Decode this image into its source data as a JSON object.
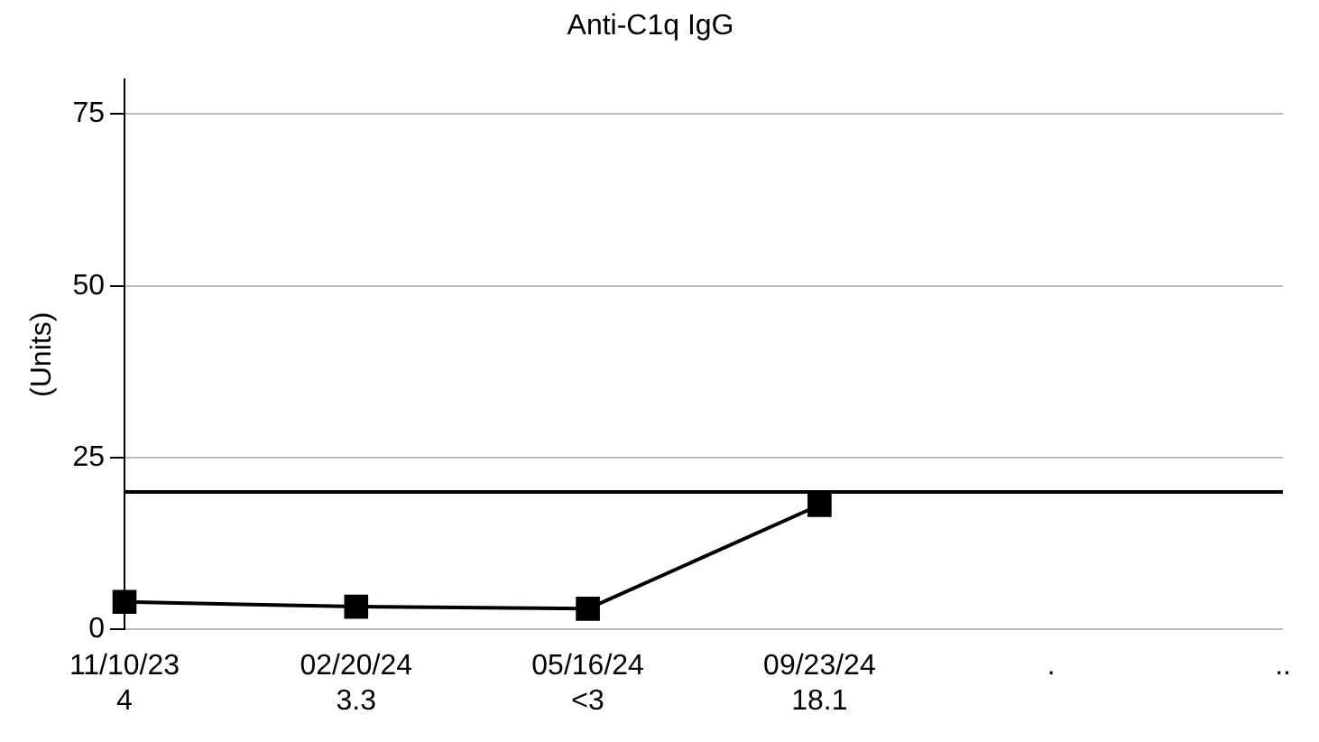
{
  "chart_data": {
    "type": "line",
    "title": "Anti-C1q IgG",
    "ylabel": "(Units)",
    "categories": [
      "11/10/23",
      "02/20/24",
      "05/16/24",
      "09/23/24",
      ".",
      ".."
    ],
    "series": [
      {
        "color": "#000000",
        "values": [
          4,
          3.3,
          3,
          18.1,
          null,
          null
        ],
        "value_labels": [
          "4",
          "3.3",
          "<3",
          "18.1",
          null,
          null
        ]
      }
    ],
    "ylim": [
      0,
      80
    ],
    "yticks": [
      0,
      25,
      50,
      75
    ],
    "grid": "y",
    "legend": false,
    "marker": "square",
    "line_style": "solid",
    "ref_lines": [
      {
        "axis": "y",
        "value": 20,
        "color": "#000000",
        "line_style": "solid"
      }
    ]
  }
}
